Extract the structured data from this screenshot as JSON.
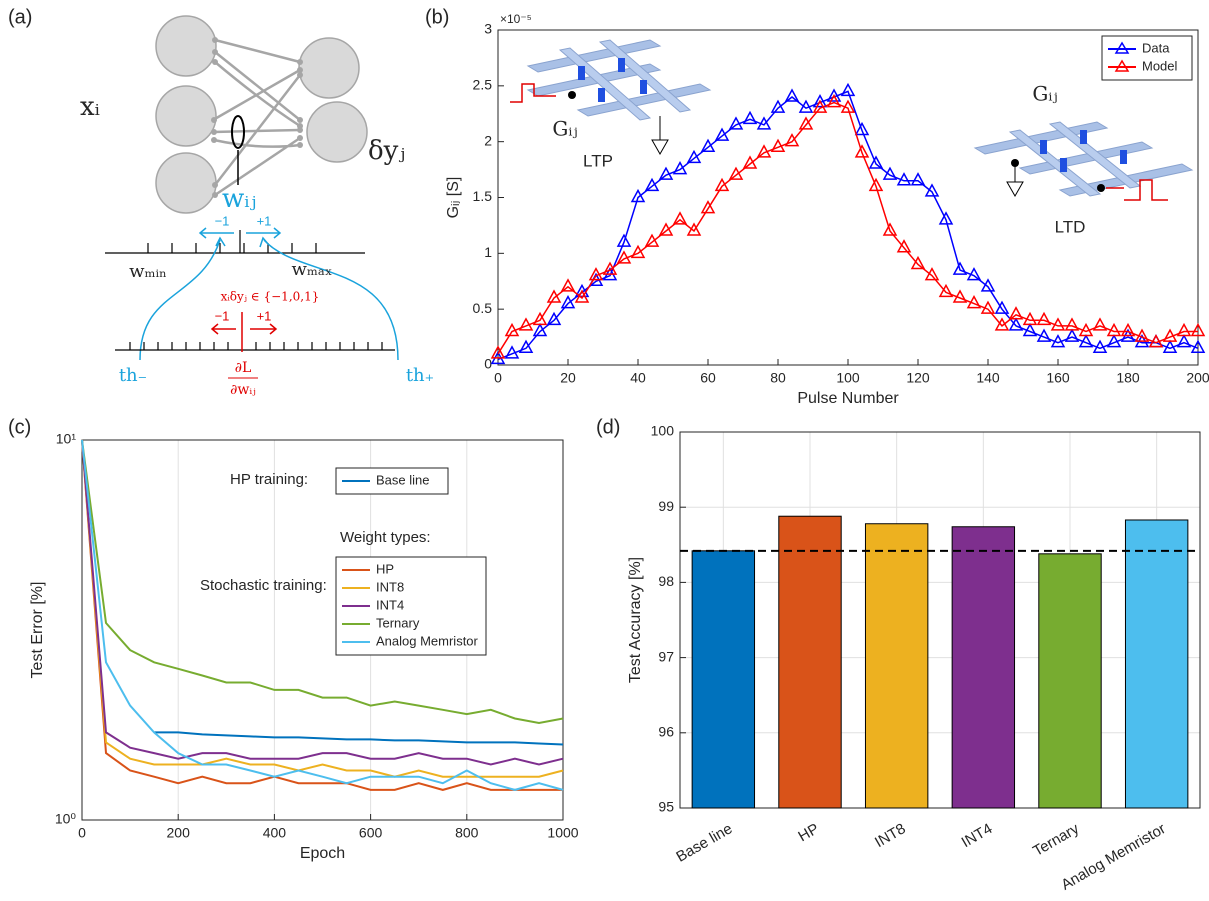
{
  "panel_labels": [
    "(a)",
    "(b)",
    "(c)",
    "(d)"
  ],
  "diagram": {
    "input": "xᵢ",
    "output": "δyⱼ",
    "weight": "wᵢⱼ",
    "upper_minus": "−1",
    "upper_plus": "+1",
    "w_min": "wₘᵢₙ",
    "w_max": "wₘₐₓ",
    "condition": "xᵢδyⱼ ∈ {−1,0,1}",
    "lower_minus": "−1",
    "lower_plus": "+1",
    "th_minus": "th₋",
    "th_plus": "th₊",
    "grad_num": "∂L",
    "grad_den": "∂wᵢⱼ"
  },
  "chart_data": [
    {
      "type": "line",
      "marker": "triangle",
      "xlabel": "Pulse Number",
      "ylabel": "Gᵢⱼ [S]",
      "y_multiplier": "×10⁻⁵",
      "annotations": [
        "LTP",
        "LTD",
        "Gᵢⱼ",
        "Gᵢⱼ"
      ],
      "x": [
        0,
        4,
        8,
        12,
        16,
        20,
        24,
        28,
        32,
        36,
        40,
        44,
        48,
        52,
        56,
        60,
        64,
        68,
        72,
        76,
        80,
        84,
        88,
        92,
        96,
        100,
        104,
        108,
        112,
        116,
        120,
        124,
        128,
        132,
        136,
        140,
        144,
        148,
        152,
        156,
        160,
        164,
        168,
        172,
        176,
        180,
        184,
        188,
        192,
        196,
        200
      ],
      "series": [
        {
          "name": "Data",
          "color": "#0000ff",
          "values": [
            0.05,
            0.1,
            0.15,
            0.3,
            0.4,
            0.55,
            0.65,
            0.75,
            0.8,
            1.1,
            1.5,
            1.6,
            1.7,
            1.75,
            1.85,
            1.95,
            2.05,
            2.15,
            2.2,
            2.15,
            2.3,
            2.4,
            2.3,
            2.35,
            2.4,
            2.45,
            2.1,
            1.8,
            1.7,
            1.65,
            1.65,
            1.55,
            1.3,
            0.85,
            0.8,
            0.7,
            0.5,
            0.35,
            0.3,
            0.25,
            0.2,
            0.25,
            0.2,
            0.15,
            0.2,
            0.25,
            0.2,
            0.2,
            0.15,
            0.2,
            0.15
          ]
        },
        {
          "name": "Model",
          "color": "#ff0000",
          "values": [
            0.1,
            0.3,
            0.35,
            0.4,
            0.6,
            0.7,
            0.6,
            0.8,
            0.85,
            0.95,
            1.0,
            1.1,
            1.2,
            1.3,
            1.2,
            1.4,
            1.6,
            1.7,
            1.8,
            1.9,
            1.95,
            2.0,
            2.15,
            2.3,
            2.35,
            2.3,
            1.9,
            1.6,
            1.2,
            1.05,
            0.9,
            0.8,
            0.65,
            0.6,
            0.55,
            0.5,
            0.35,
            0.45,
            0.4,
            0.4,
            0.35,
            0.35,
            0.3,
            0.35,
            0.3,
            0.3,
            0.25,
            0.2,
            0.25,
            0.3,
            0.3
          ]
        }
      ],
      "xlim": [
        0,
        200
      ],
      "xticks": [
        0,
        20,
        40,
        60,
        80,
        100,
        120,
        140,
        160,
        180,
        200
      ],
      "ylim": [
        0,
        3
      ],
      "yticks": [
        0,
        0.5,
        1,
        1.5,
        2,
        2.5,
        3
      ],
      "grid": false,
      "legend": "upper right"
    },
    {
      "type": "line",
      "log_y": true,
      "xlabel": "Epoch",
      "ylabel": "Test Error [%]",
      "annotations": [
        "HP training:",
        "Weight types:",
        "Stochastic training:"
      ],
      "x": [
        0,
        50,
        100,
        150,
        200,
        250,
        300,
        350,
        400,
        450,
        500,
        550,
        600,
        650,
        700,
        750,
        800,
        850,
        900,
        950,
        1000
      ],
      "series": [
        {
          "name": "Base line",
          "color": "#0072bd",
          "values": [
            null,
            null,
            null,
            1.7,
            1.7,
            1.68,
            1.67,
            1.66,
            1.65,
            1.65,
            1.64,
            1.63,
            1.63,
            1.62,
            1.62,
            1.61,
            1.6,
            1.6,
            1.6,
            1.59,
            1.58
          ]
        },
        {
          "name": "HP",
          "color": "#d95319",
          "values": [
            10,
            1.5,
            1.35,
            1.3,
            1.25,
            1.3,
            1.25,
            1.25,
            1.3,
            1.25,
            1.25,
            1.25,
            1.2,
            1.2,
            1.25,
            1.2,
            1.25,
            1.2,
            1.2,
            1.2,
            1.2
          ]
        },
        {
          "name": "INT8",
          "color": "#edb120",
          "values": [
            10,
            1.6,
            1.45,
            1.4,
            1.4,
            1.4,
            1.45,
            1.4,
            1.4,
            1.35,
            1.4,
            1.35,
            1.35,
            1.3,
            1.35,
            1.3,
            1.3,
            1.3,
            1.3,
            1.3,
            1.35
          ]
        },
        {
          "name": "INT4",
          "color": "#7e2f8e",
          "values": [
            10,
            1.7,
            1.55,
            1.5,
            1.45,
            1.5,
            1.5,
            1.45,
            1.45,
            1.45,
            1.5,
            1.5,
            1.45,
            1.45,
            1.5,
            1.45,
            1.45,
            1.4,
            1.45,
            1.4,
            1.45
          ]
        },
        {
          "name": "Ternary",
          "color": "#77ac30",
          "values": [
            10,
            3.3,
            2.8,
            2.6,
            2.5,
            2.4,
            2.3,
            2.3,
            2.2,
            2.2,
            2.1,
            2.1,
            2.0,
            2.05,
            2.0,
            1.95,
            1.9,
            1.95,
            1.85,
            1.8,
            1.85
          ]
        },
        {
          "name": "Analog Memristor",
          "color": "#4dbeee",
          "values": [
            10,
            2.6,
            2.0,
            1.7,
            1.5,
            1.4,
            1.4,
            1.35,
            1.3,
            1.35,
            1.3,
            1.25,
            1.3,
            1.3,
            1.3,
            1.25,
            1.35,
            1.25,
            1.2,
            1.25,
            1.2
          ]
        }
      ],
      "xlim": [
        0,
        1000
      ],
      "xticks": [
        0,
        200,
        400,
        600,
        800,
        1000
      ],
      "ylim": [
        1,
        10
      ],
      "yticks": [
        {
          "value": 1,
          "label": "10⁰"
        },
        {
          "value": 10,
          "label": "10¹"
        }
      ],
      "grid": true
    },
    {
      "type": "bar",
      "ylabel": "Test Accuracy [%]",
      "categories": [
        "Base line",
        "HP",
        "INT8",
        "INT4",
        "Ternary",
        "Analog Memristor"
      ],
      "values": [
        98.42,
        98.88,
        98.78,
        98.74,
        98.38,
        98.83
      ],
      "colors": [
        "#0072bd",
        "#d95319",
        "#edb120",
        "#7e2f8e",
        "#77ac30",
        "#4dbeee"
      ],
      "reference_line": 98.42,
      "ylim": [
        95,
        100
      ],
      "yticks": [
        95,
        96,
        97,
        98,
        99,
        100
      ],
      "grid": true
    }
  ]
}
